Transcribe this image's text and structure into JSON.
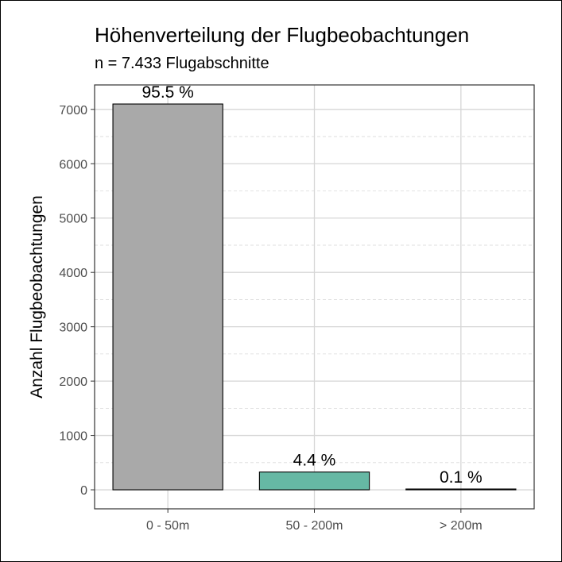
{
  "chart_data": {
    "type": "bar",
    "title": "Höhenverteilung der Flugbeobachtungen",
    "subtitle": "n = 7.433 Flugabschnitte",
    "xlabel": "",
    "ylabel": "Anzahl Flugbeobachtungen",
    "categories": [
      "0 - 50m",
      "50 - 200m",
      "> 200m"
    ],
    "values": [
      7099,
      327,
      7
    ],
    "data_labels": [
      "95.5 %",
      "4.4 %",
      "0.1 %"
    ],
    "bar_colors": [
      "#a9a9a9",
      "#66b8a4",
      "#000000"
    ],
    "ylim": [
      -350,
      7450
    ],
    "yticks": [
      0,
      1000,
      2000,
      3000,
      4000,
      5000,
      6000,
      7000
    ],
    "ytick_labels": [
      "0",
      "1000",
      "2000",
      "3000",
      "4000",
      "5000",
      "6000",
      "7000"
    ],
    "grid": true,
    "legend": "none"
  }
}
